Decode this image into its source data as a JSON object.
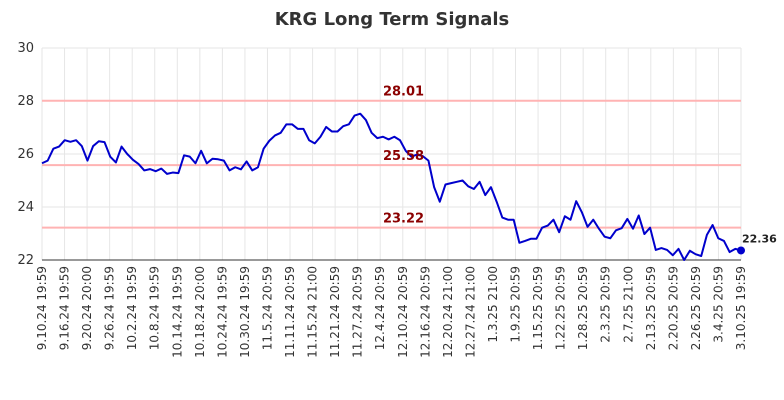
{
  "chart_data": {
    "type": "line",
    "title": "KRG Long Term Signals",
    "xlabel": "",
    "ylabel": "",
    "ylim": [
      22,
      30
    ],
    "yticks": [
      22,
      24,
      26,
      28,
      30
    ],
    "grid": true,
    "line_color": "#0000cc",
    "ref_color": "#ffb3b3",
    "ref_label_color": "#8b0000",
    "x_tick_labels": [
      "9.10.24 19:59",
      "9.16.24 19:59",
      "9.20.24 20:00",
      "9.26.24 19:59",
      "10.2.24 19:59",
      "10.8.24 19:59",
      "10.14.24 19:59",
      "10.18.24 20:00",
      "10.24.24 19:59",
      "10.30.24 19:59",
      "11.5.24 20:59",
      "11.11.24 20:59",
      "11.15.24 21:00",
      "11.21.24 20:59",
      "11.27.24 20:59",
      "12.4.24 20:59",
      "12.10.24 20:59",
      "12.16.24 20:59",
      "12.20.24 21:00",
      "12.27.24 21:00",
      "1.3.25 21:00",
      "1.9.25 20:59",
      "1.15.25 20:59",
      "1.22.25 20:59",
      "1.28.25 20:59",
      "2.3.25 20:59",
      "2.7.25 21:00",
      "2.13.25 20:59",
      "2.20.25 20:59",
      "2.26.25 20:59",
      "3.4.25 20:59",
      "3.10.25 19:59"
    ],
    "reference_lines": [
      {
        "label": "28.01",
        "value": 28.01
      },
      {
        "label": "25.58",
        "value": 25.58
      },
      {
        "label": "23.22",
        "value": 23.22
      }
    ],
    "last_label": "22.36",
    "values": [
      25.65,
      25.75,
      26.2,
      26.28,
      26.52,
      26.46,
      26.52,
      26.3,
      25.75,
      26.3,
      26.48,
      26.45,
      25.9,
      25.68,
      26.28,
      26.0,
      25.78,
      25.62,
      25.38,
      25.43,
      25.35,
      25.45,
      25.25,
      25.3,
      25.28,
      25.95,
      25.9,
      25.65,
      26.12,
      25.65,
      25.82,
      25.8,
      25.75,
      25.38,
      25.5,
      25.42,
      25.72,
      25.38,
      25.5,
      26.2,
      26.5,
      26.7,
      26.8,
      27.12,
      27.12,
      26.95,
      26.95,
      26.52,
      26.4,
      26.65,
      27.02,
      26.85,
      26.85,
      27.05,
      27.12,
      27.45,
      27.52,
      27.28,
      26.8,
      26.6,
      26.65,
      26.55,
      26.65,
      26.52,
      26.12,
      25.9,
      25.98,
      25.92,
      25.75,
      24.75,
      24.2,
      24.85,
      24.9,
      24.95,
      25.0,
      24.78,
      24.68,
      24.95,
      24.45,
      24.75,
      24.2,
      23.6,
      23.52,
      23.52,
      22.65,
      22.72,
      22.8,
      22.8,
      23.22,
      23.3,
      23.52,
      23.05,
      23.65,
      23.52,
      24.22,
      23.8,
      23.25,
      23.52,
      23.18,
      22.88,
      22.82,
      23.12,
      23.2,
      23.55,
      23.18,
      23.68,
      22.98,
      23.22,
      22.38,
      22.45,
      22.38,
      22.18,
      22.42,
      22.0,
      22.35,
      22.22,
      22.15,
      22.95,
      23.32,
      22.82,
      22.72,
      22.3,
      22.42,
      22.36
    ]
  }
}
